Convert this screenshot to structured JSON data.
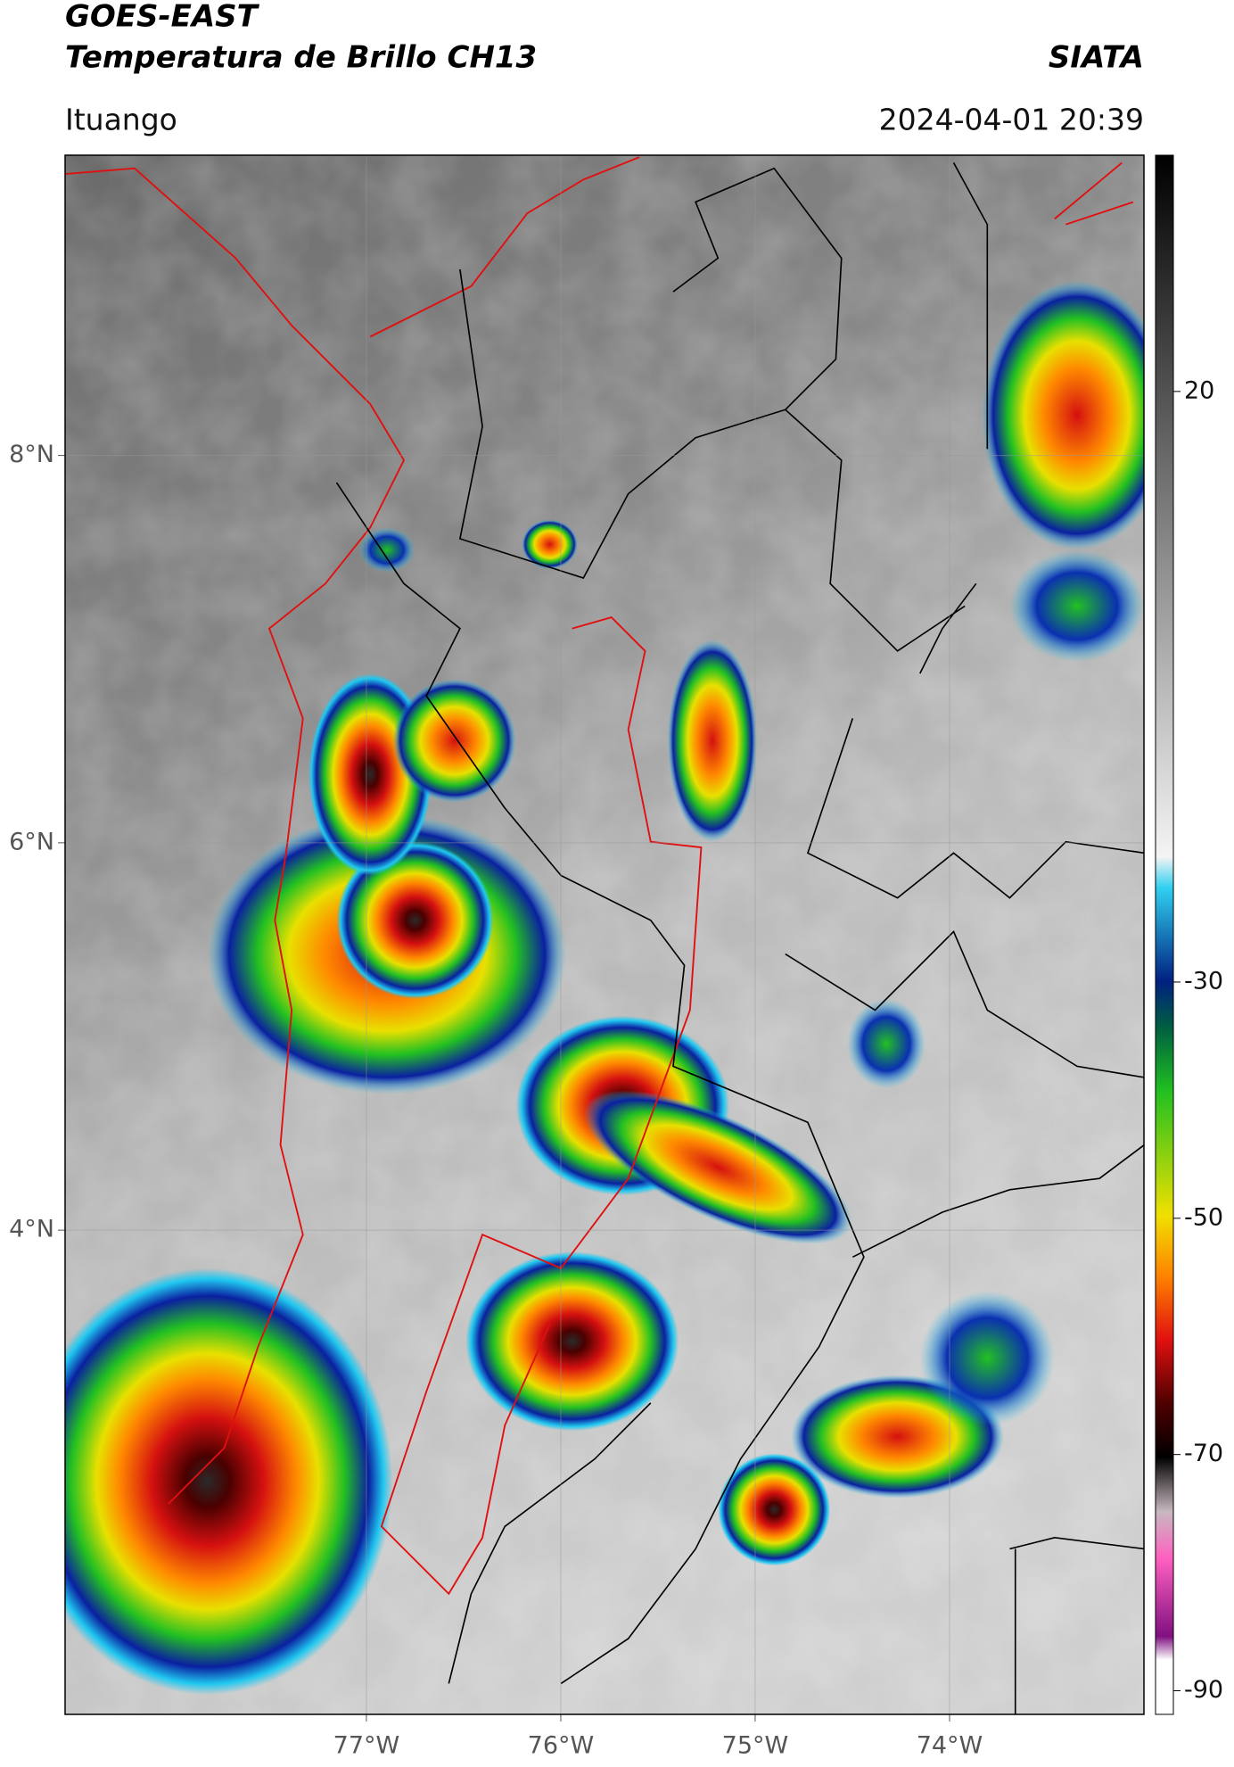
{
  "chart_data": {
    "type": "map",
    "title": "GOES-EAST",
    "subtitle": "Temperatura de Brillo CH13",
    "source": "SIATA",
    "region": "Ituango",
    "datetime": "2024-04-01 20:39",
    "xlim": [
      -78.55,
      -73.0
    ],
    "ylim": [
      1.5,
      9.55
    ],
    "xticks": [
      {
        "value": -77,
        "label": "77°W"
      },
      {
        "value": -76,
        "label": "76°W"
      },
      {
        "value": -75,
        "label": "75°W"
      },
      {
        "value": -74,
        "label": "74°W"
      }
    ],
    "yticks": [
      {
        "value": 8,
        "label": "8°N"
      },
      {
        "value": 6,
        "label": "6°N"
      },
      {
        "value": 4,
        "label": "4°N"
      }
    ],
    "grid": true,
    "colorbar": {
      "clim": [
        -92,
        40
      ],
      "ticks": [
        20,
        -30,
        -50,
        -70,
        -90
      ]
    }
  }
}
